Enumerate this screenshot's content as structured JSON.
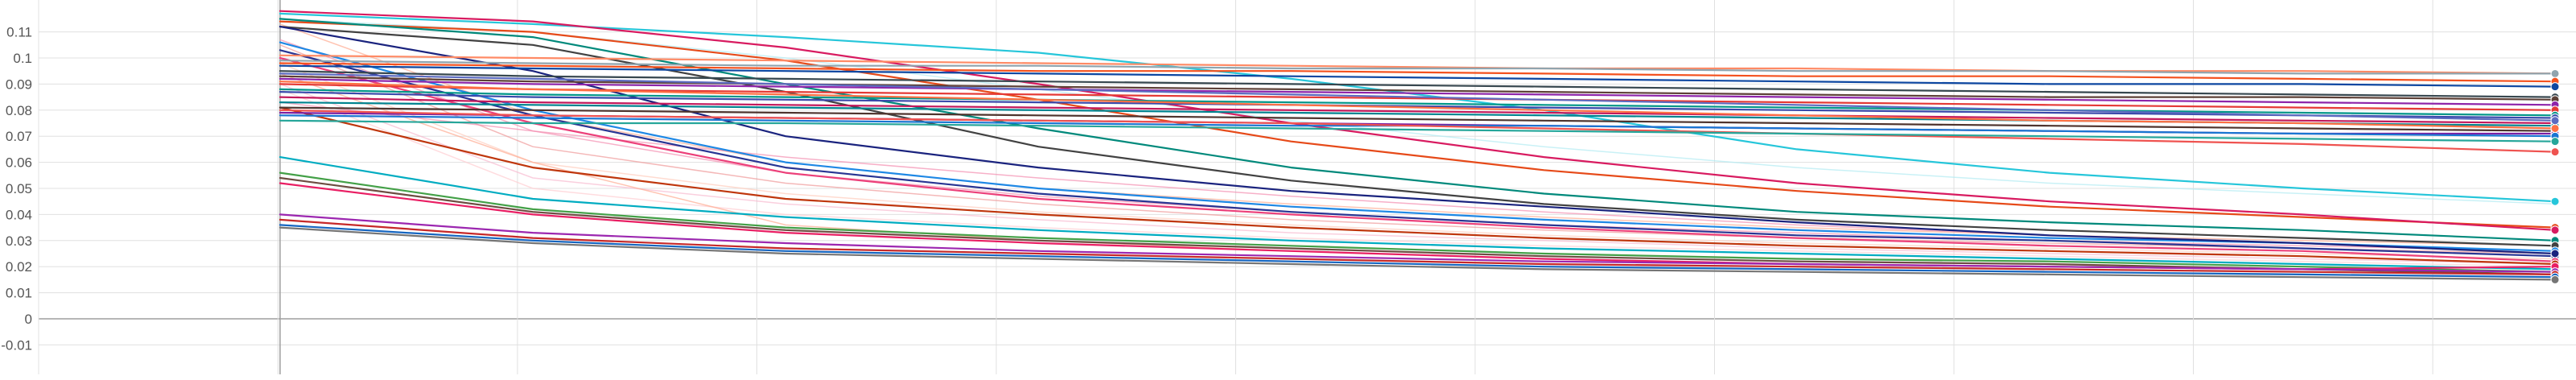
{
  "chart_data": {
    "type": "line",
    "title": "",
    "xlabel": "",
    "ylabel": "",
    "ylim": [
      -0.015,
      0.117
    ],
    "y_ticks": [
      "0.11",
      "0.1",
      "0.09",
      "0.08",
      "0.07",
      "0.06",
      "0.05",
      "0.04",
      "0.03",
      "0.02",
      "0.01",
      "0",
      "-0.01"
    ],
    "grid": true,
    "legend": "none",
    "x": [
      0,
      1,
      2,
      3,
      4,
      5,
      6,
      7,
      8,
      9
    ],
    "series": [
      {
        "color": "#26c6da",
        "values": [
          0.117,
          0.113,
          0.108,
          0.102,
          0.092,
          0.08,
          0.065,
          0.056,
          0.05,
          0.045
        ]
      },
      {
        "color": "#e64a19",
        "values": [
          0.114,
          0.11,
          0.099,
          0.084,
          0.068,
          0.057,
          0.049,
          0.043,
          0.039,
          0.035
        ]
      },
      {
        "color": "#d81b60",
        "values": [
          0.118,
          0.114,
          0.104,
          0.09,
          0.075,
          0.062,
          0.052,
          0.045,
          0.04,
          0.034
        ]
      },
      {
        "color": "#00897b",
        "values": [
          0.115,
          0.108,
          0.09,
          0.073,
          0.058,
          0.048,
          0.041,
          0.037,
          0.034,
          0.03
        ]
      },
      {
        "color": "#424242",
        "values": [
          0.112,
          0.105,
          0.087,
          0.066,
          0.053,
          0.044,
          0.038,
          0.034,
          0.031,
          0.028
        ]
      },
      {
        "color": "#1e88e5",
        "values": [
          0.106,
          0.08,
          0.06,
          0.05,
          0.043,
          0.038,
          0.034,
          0.031,
          0.029,
          0.026
        ]
      },
      {
        "color": "#283593",
        "values": [
          0.103,
          0.078,
          0.058,
          0.048,
          0.041,
          0.036,
          0.032,
          0.03,
          0.027,
          0.024
        ]
      },
      {
        "color": "#ec407a",
        "values": [
          0.1,
          0.075,
          0.056,
          0.046,
          0.04,
          0.035,
          0.031,
          0.028,
          0.026,
          0.022
        ]
      },
      {
        "color": "#1a237e",
        "values": [
          0.112,
          0.095,
          0.07,
          0.058,
          0.049,
          0.043,
          0.037,
          0.032,
          0.029,
          0.025
        ]
      },
      {
        "color": "#bf360c",
        "values": [
          0.081,
          0.058,
          0.046,
          0.04,
          0.035,
          0.031,
          0.028,
          0.026,
          0.024,
          0.021
        ]
      },
      {
        "color": "#00acc1",
        "values": [
          0.062,
          0.046,
          0.039,
          0.034,
          0.03,
          0.027,
          0.025,
          0.023,
          0.021,
          0.019
        ]
      },
      {
        "color": "#43a047",
        "values": [
          0.056,
          0.042,
          0.035,
          0.031,
          0.028,
          0.025,
          0.023,
          0.022,
          0.02,
          0.018
        ]
      },
      {
        "color": "#6d4c41",
        "values": [
          0.054,
          0.041,
          0.034,
          0.03,
          0.027,
          0.024,
          0.022,
          0.021,
          0.019,
          0.017
        ]
      },
      {
        "color": "#e91e63",
        "values": [
          0.052,
          0.04,
          0.033,
          0.029,
          0.026,
          0.023,
          0.021,
          0.02,
          0.019,
          0.02
        ]
      },
      {
        "color": "#9c27b0",
        "values": [
          0.04,
          0.033,
          0.029,
          0.026,
          0.024,
          0.022,
          0.021,
          0.02,
          0.019,
          0.018
        ]
      },
      {
        "color": "#c62828",
        "values": [
          0.038,
          0.031,
          0.027,
          0.025,
          0.023,
          0.021,
          0.02,
          0.019,
          0.018,
          0.017
        ]
      },
      {
        "color": "#1565c0",
        "values": [
          0.036,
          0.03,
          0.026,
          0.024,
          0.022,
          0.02,
          0.019,
          0.018,
          0.017,
          0.016
        ]
      },
      {
        "color": "#757575",
        "values": [
          0.035,
          0.029,
          0.025,
          0.023,
          0.021,
          0.019,
          0.018,
          0.017,
          0.016,
          0.015
        ]
      },
      {
        "color": "#ff8a65",
        "values": [
          0.101,
          0.1,
          0.099,
          0.098,
          0.097,
          0.096,
          0.096,
          0.095,
          0.095,
          0.094
        ]
      },
      {
        "color": "#90a4ae",
        "values": [
          0.099,
          0.098,
          0.097,
          0.097,
          0.096,
          0.096,
          0.095,
          0.095,
          0.094,
          0.094
        ]
      },
      {
        "color": "#f4511e",
        "values": [
          0.098,
          0.097,
          0.096,
          0.095,
          0.095,
          0.094,
          0.093,
          0.093,
          0.092,
          0.091
        ]
      },
      {
        "color": "#0d47a1",
        "values": [
          0.097,
          0.096,
          0.095,
          0.094,
          0.093,
          0.092,
          0.091,
          0.09,
          0.09,
          0.089
        ]
      },
      {
        "color": "#37474f",
        "values": [
          0.095,
          0.093,
          0.092,
          0.091,
          0.09,
          0.089,
          0.088,
          0.087,
          0.086,
          0.085
        ]
      },
      {
        "color": "#5d4037",
        "values": [
          0.093,
          0.091,
          0.09,
          0.089,
          0.088,
          0.087,
          0.086,
          0.085,
          0.085,
          0.084
        ]
      },
      {
        "color": "#8e24aa",
        "values": [
          0.092,
          0.09,
          0.089,
          0.088,
          0.087,
          0.086,
          0.085,
          0.084,
          0.083,
          0.082
        ]
      },
      {
        "color": "#e53935",
        "values": [
          0.09,
          0.088,
          0.087,
          0.086,
          0.085,
          0.084,
          0.083,
          0.082,
          0.081,
          0.08
        ]
      },
      {
        "color": "#009688",
        "values": [
          0.088,
          0.086,
          0.085,
          0.084,
          0.083,
          0.082,
          0.081,
          0.08,
          0.079,
          0.078
        ]
      },
      {
        "color": "#3949ab",
        "values": [
          0.087,
          0.085,
          0.084,
          0.083,
          0.082,
          0.081,
          0.08,
          0.079,
          0.078,
          0.077
        ]
      },
      {
        "color": "#c2185b",
        "values": [
          0.085,
          0.083,
          0.082,
          0.081,
          0.08,
          0.079,
          0.078,
          0.077,
          0.076,
          0.075
        ]
      },
      {
        "color": "#00838f",
        "values": [
          0.083,
          0.082,
          0.081,
          0.08,
          0.079,
          0.078,
          0.077,
          0.076,
          0.075,
          0.074
        ]
      },
      {
        "color": "#4e342e",
        "values": [
          0.081,
          0.08,
          0.079,
          0.078,
          0.077,
          0.076,
          0.075,
          0.074,
          0.073,
          0.072
        ]
      },
      {
        "color": "#7b1fa2",
        "values": [
          0.079,
          0.078,
          0.077,
          0.076,
          0.075,
          0.074,
          0.073,
          0.072,
          0.071,
          0.071
        ]
      },
      {
        "color": "#1976d2",
        "values": [
          0.078,
          0.077,
          0.076,
          0.075,
          0.074,
          0.074,
          0.073,
          0.072,
          0.071,
          0.07
        ]
      },
      {
        "color": "#ef5350",
        "values": [
          0.08,
          0.078,
          0.077,
          0.076,
          0.075,
          0.073,
          0.071,
          0.069,
          0.067,
          0.064
        ]
      },
      {
        "color": "#26a69a",
        "values": [
          0.076,
          0.075,
          0.075,
          0.074,
          0.073,
          0.072,
          0.071,
          0.07,
          0.069,
          0.068
        ]
      },
      {
        "color": "#ff7043",
        "values": [
          0.091,
          0.088,
          0.086,
          0.084,
          0.082,
          0.08,
          0.078,
          0.076,
          0.075,
          0.073
        ]
      },
      {
        "color": "#5c6bc0",
        "values": [
          0.094,
          0.092,
          0.09,
          0.088,
          0.086,
          0.084,
          0.082,
          0.08,
          0.078,
          0.076
        ]
      }
    ],
    "faint_series": [
      {
        "color": "#ffab91",
        "values": [
          0.113,
          0.078,
          0.06,
          0.05,
          0.044,
          0.039,
          0.035,
          0.032,
          0.03,
          0.028
        ]
      },
      {
        "color": "#f48fb1",
        "values": [
          0.107,
          0.072,
          0.056,
          0.047,
          0.041,
          0.036,
          0.033,
          0.03,
          0.028,
          0.026
        ]
      },
      {
        "color": "#ef9a9a",
        "values": [
          0.105,
          0.066,
          0.052,
          0.044,
          0.038,
          0.034,
          0.031,
          0.029,
          0.027,
          0.025
        ]
      },
      {
        "color": "#ffccbc",
        "values": [
          0.098,
          0.06,
          0.048,
          0.041,
          0.036,
          0.032,
          0.029,
          0.027,
          0.025,
          0.023
        ]
      },
      {
        "color": "#f8bbd0",
        "values": [
          0.09,
          0.054,
          0.044,
          0.038,
          0.033,
          0.03,
          0.027,
          0.025,
          0.023,
          0.021
        ]
      },
      {
        "color": "#ffcdd2",
        "values": [
          0.088,
          0.05,
          0.04,
          0.035,
          0.031,
          0.028,
          0.026,
          0.024,
          0.022,
          0.02
        ]
      },
      {
        "color": "#b2ebf2",
        "values": [
          0.115,
          0.11,
          0.1,
          0.088,
          0.076,
          0.066,
          0.058,
          0.052,
          0.048,
          0.044
        ]
      },
      {
        "color": "#ffab91",
        "values": [
          0.094,
          0.06,
          0.036,
          0.03,
          0.026,
          0.023,
          0.021,
          0.02,
          0.019,
          0.018
        ]
      },
      {
        "color": "#f48fb1",
        "values": [
          0.083,
          0.072,
          0.062,
          0.054,
          0.047,
          0.041,
          0.036,
          0.032,
          0.029,
          0.026
        ]
      }
    ]
  }
}
